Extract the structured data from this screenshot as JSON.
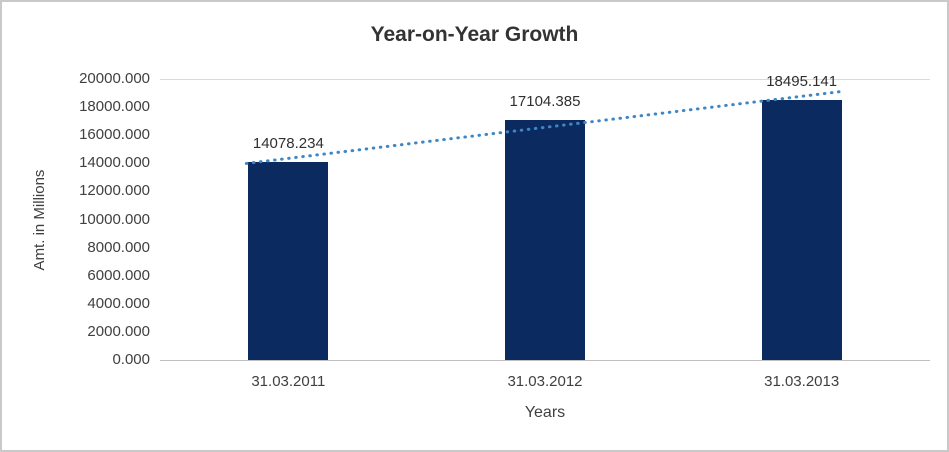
{
  "chart_data": {
    "type": "bar",
    "title": "Year-on-Year Growth",
    "xlabel": "Years",
    "ylabel": "Amt. in Millions",
    "categories": [
      "31.03.2011",
      "31.03.2012",
      "31.03.2013"
    ],
    "values": [
      14078.234,
      17104.385,
      18495.141
    ],
    "data_labels": [
      "14078.234",
      "17104.385",
      "18495.141"
    ],
    "ylim": [
      0,
      20000
    ],
    "ytick_step": 2000,
    "ytick_labels": [
      "0.000",
      "2000.000",
      "4000.000",
      "6000.000",
      "8000.000",
      "10000.000",
      "12000.000",
      "14000.000",
      "16000.000",
      "18000.000",
      "20000.000"
    ],
    "bar_color": "#0b2a60",
    "grid": "top-border-only",
    "legend": "none",
    "trendline": {
      "type": "linear",
      "style": "dotted",
      "color": "#3e86c4",
      "start_value": 14351,
      "end_value": 18768
    }
  }
}
